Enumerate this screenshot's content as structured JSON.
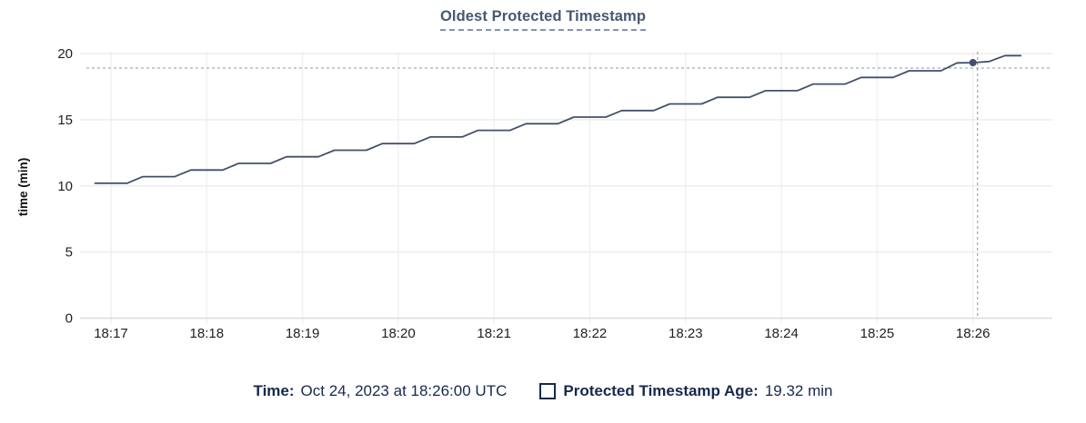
{
  "title": "Oldest Protected Timestamp",
  "legend": {
    "time_label": "Time:",
    "time_value": "Oct 24, 2023 at 18:26:00 UTC",
    "series_label": "Protected Timestamp Age:",
    "series_value": "19.32 min"
  },
  "colors": {
    "title": "#475872",
    "line": "#43506a",
    "hover_dot": "#43506a",
    "crosshair": "#9cafbd",
    "grid_horizontal": "#ececec",
    "grid_vertical": "#f1f1f1",
    "axis_bottom": "#dcdcdc",
    "tick_text": "#1f1f1f",
    "legend_text": "#17294d"
  },
  "chart_data": {
    "type": "line",
    "title": "Oldest Protected Timestamp",
    "xlabel": "",
    "ylabel": "time (min)",
    "ylim": [
      0,
      20
    ],
    "y_ticks": [
      0,
      5,
      10,
      15,
      20
    ],
    "x_ticks": [
      "18:17",
      "18:18",
      "18:19",
      "18:20",
      "18:21",
      "18:22",
      "18:23",
      "18:24",
      "18:25",
      "18:26"
    ],
    "x_range": [
      "18:16:45",
      "18:26:50"
    ],
    "grid": true,
    "legend_position": "bottom",
    "series": [
      {
        "name": "Protected Timestamp Age",
        "unit": "min",
        "x": [
          "18:16:50",
          "18:17:00",
          "18:17:10",
          "18:17:20",
          "18:17:30",
          "18:17:40",
          "18:17:50",
          "18:18:00",
          "18:18:10",
          "18:18:20",
          "18:18:30",
          "18:18:40",
          "18:18:50",
          "18:19:00",
          "18:19:10",
          "18:19:20",
          "18:19:30",
          "18:19:40",
          "18:19:50",
          "18:20:00",
          "18:20:10",
          "18:20:20",
          "18:20:30",
          "18:20:40",
          "18:20:50",
          "18:21:00",
          "18:21:10",
          "18:21:20",
          "18:21:30",
          "18:21:40",
          "18:21:50",
          "18:22:00",
          "18:22:10",
          "18:22:20",
          "18:22:30",
          "18:22:40",
          "18:22:50",
          "18:23:00",
          "18:23:10",
          "18:23:20",
          "18:23:30",
          "18:23:40",
          "18:23:50",
          "18:24:00",
          "18:24:10",
          "18:24:20",
          "18:24:30",
          "18:24:40",
          "18:24:50",
          "18:25:00",
          "18:25:10",
          "18:25:20",
          "18:25:30",
          "18:25:40",
          "18:25:50",
          "18:26:00",
          "18:26:10",
          "18:26:20",
          "18:26:30"
        ],
        "values": [
          10.2,
          10.2,
          10.2,
          10.7,
          10.7,
          10.7,
          11.2,
          11.2,
          11.2,
          11.7,
          11.7,
          11.7,
          12.2,
          12.2,
          12.2,
          12.7,
          12.7,
          12.7,
          13.2,
          13.2,
          13.2,
          13.7,
          13.7,
          13.7,
          14.2,
          14.2,
          14.2,
          14.7,
          14.7,
          14.7,
          15.2,
          15.2,
          15.2,
          15.7,
          15.7,
          15.7,
          16.2,
          16.2,
          16.2,
          16.7,
          16.7,
          16.7,
          17.2,
          17.2,
          17.2,
          17.7,
          17.7,
          17.7,
          18.2,
          18.2,
          18.2,
          18.7,
          18.7,
          18.7,
          19.3,
          19.32,
          19.4,
          19.85,
          19.85
        ]
      }
    ],
    "hover": {
      "time": "18:26:00",
      "value": 19.32
    }
  }
}
